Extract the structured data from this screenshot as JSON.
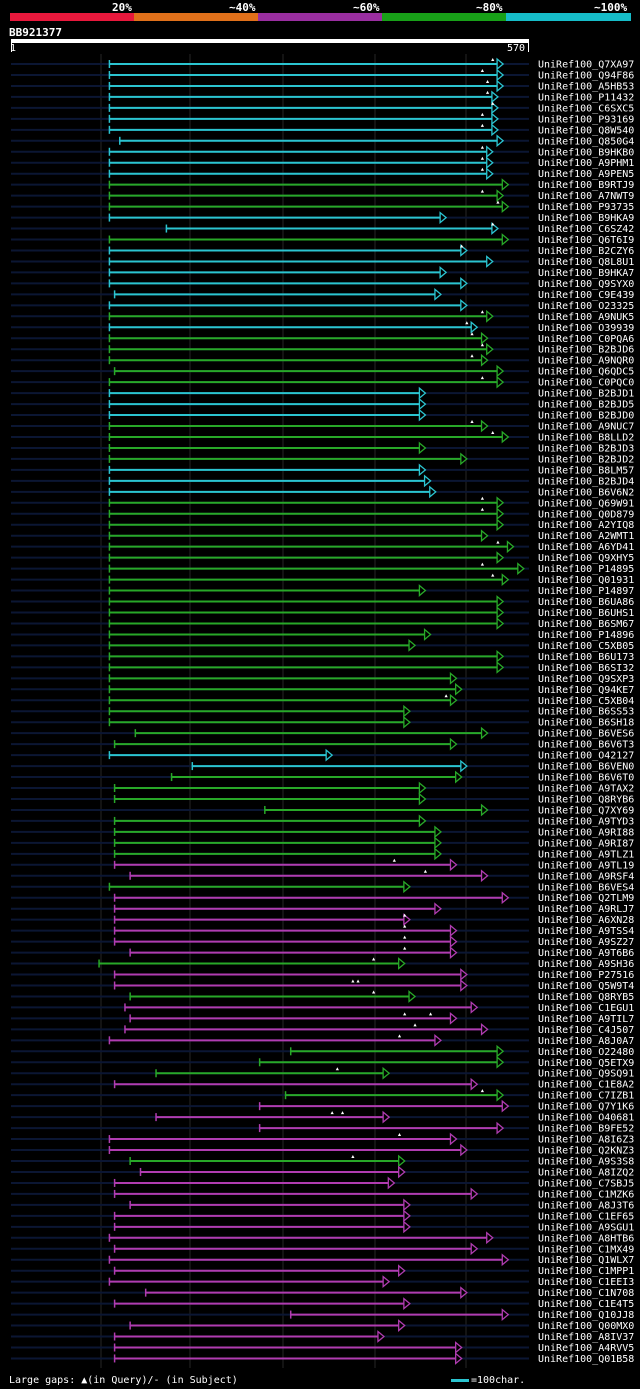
{
  "identity_scale": {
    "labels": [
      "20%",
      "~40%",
      "~60%",
      "~80%",
      "~100%"
    ],
    "colors": [
      "#e8183c",
      "#e0701a",
      "#9a2ea0",
      "#18a018",
      "#16bcc8"
    ]
  },
  "query": {
    "id": "BB921377",
    "start": "1",
    "end": "570"
  },
  "palette": {
    "cyan": "#2bc4d0",
    "green": "#28a828",
    "magenta": "#b03cb0",
    "track": "#0b1633",
    "grid": "#262626"
  },
  "hits": [
    {
      "name": "UniRef100_Q7XA97",
      "c": "c",
      "s": 19,
      "e": 95,
      "m": [
        93
      ]
    },
    {
      "name": "UniRef100_Q94F86",
      "c": "c",
      "s": 19,
      "e": 95,
      "m": [
        91
      ]
    },
    {
      "name": "UniRef100_A5HB53",
      "c": "c",
      "s": 19,
      "e": 95,
      "m": [
        92
      ]
    },
    {
      "name": "UniRef100_P11432",
      "c": "c",
      "s": 19,
      "e": 94,
      "m": [
        92
      ]
    },
    {
      "name": "UniRef100_C6SXC5",
      "c": "c",
      "s": 19,
      "e": 94,
      "m": [
        93
      ]
    },
    {
      "name": "UniRef100_P93169",
      "c": "c",
      "s": 19,
      "e": 94,
      "m": [
        91
      ]
    },
    {
      "name": "UniRef100_Q8W540",
      "c": "c",
      "s": 19,
      "e": 94,
      "m": [
        91
      ]
    },
    {
      "name": "UniRef100_Q850G4",
      "c": "c",
      "s": 21,
      "e": 95,
      "m": []
    },
    {
      "name": "UniRef100_B9HKB0",
      "c": "c",
      "s": 19,
      "e": 93,
      "m": [
        91
      ]
    },
    {
      "name": "UniRef100_A9PHM1",
      "c": "c",
      "s": 19,
      "e": 93,
      "m": [
        91
      ]
    },
    {
      "name": "UniRef100_A9PEN5",
      "c": "c",
      "s": 19,
      "e": 93,
      "m": [
        91
      ]
    },
    {
      "name": "UniRef100_B9RTJ9",
      "c": "g",
      "s": 19,
      "e": 96,
      "m": []
    },
    {
      "name": "UniRef100_A7NWT9",
      "c": "g",
      "s": 19,
      "e": 95,
      "m": [
        91
      ]
    },
    {
      "name": "UniRef100_P93735",
      "c": "g",
      "s": 19,
      "e": 96,
      "m": [
        94
      ]
    },
    {
      "name": "UniRef100_B9HKA9",
      "c": "c",
      "s": 19,
      "e": 84,
      "m": []
    },
    {
      "name": "UniRef100_C6SZ42",
      "c": "c",
      "s": 30,
      "e": 94,
      "m": [
        93
      ]
    },
    {
      "name": "UniRef100_Q6T6I9",
      "c": "g",
      "s": 19,
      "e": 96,
      "m": []
    },
    {
      "name": "UniRef100_B2CZY6",
      "c": "c",
      "s": 19,
      "e": 88,
      "m": [
        87
      ]
    },
    {
      "name": "UniRef100_Q8L8U1",
      "c": "c",
      "s": 19,
      "e": 93,
      "m": []
    },
    {
      "name": "UniRef100_B9HKA7",
      "c": "c",
      "s": 19,
      "e": 84,
      "m": []
    },
    {
      "name": "UniRef100_Q9SYX0",
      "c": "c",
      "s": 19,
      "e": 88,
      "m": []
    },
    {
      "name": "UniRef100_C9E439",
      "c": "c",
      "s": 20,
      "e": 83,
      "m": []
    },
    {
      "name": "UniRef100_O23325",
      "c": "c",
      "s": 19,
      "e": 88,
      "m": []
    },
    {
      "name": "UniRef100_A9NUK5",
      "c": "g",
      "s": 19,
      "e": 93,
      "m": [
        91
      ]
    },
    {
      "name": "UniRef100_O39939",
      "c": "c",
      "s": 19,
      "e": 90,
      "m": [
        88
      ]
    },
    {
      "name": "UniRef100_C0PQA6",
      "c": "g",
      "s": 19,
      "e": 92,
      "m": [
        89
      ]
    },
    {
      "name": "UniRef100_B2BJD6",
      "c": "g",
      "s": 19,
      "e": 93,
      "m": [
        91
      ]
    },
    {
      "name": "UniRef100_A9NQR0",
      "c": "g",
      "s": 19,
      "e": 92,
      "m": [
        89
      ]
    },
    {
      "name": "UniRef100_Q6QDC5",
      "c": "g",
      "s": 20,
      "e": 95,
      "m": []
    },
    {
      "name": "UniRef100_C0PQC0",
      "c": "g",
      "s": 19,
      "e": 95,
      "m": [
        91
      ]
    },
    {
      "name": "UniRef100_B2BJD1",
      "c": "c",
      "s": 19,
      "e": 80,
      "m": []
    },
    {
      "name": "UniRef100_B2BJD5",
      "c": "c",
      "s": 19,
      "e": 80,
      "m": []
    },
    {
      "name": "UniRef100_B2BJD0",
      "c": "c",
      "s": 19,
      "e": 80,
      "m": []
    },
    {
      "name": "UniRef100_A9NUC7",
      "c": "g",
      "s": 19,
      "e": 92,
      "m": [
        89
      ]
    },
    {
      "name": "UniRef100_B8LLD2",
      "c": "g",
      "s": 19,
      "e": 96,
      "m": [
        93
      ]
    },
    {
      "name": "UniRef100_B2BJD3",
      "c": "g",
      "s": 19,
      "e": 80,
      "m": []
    },
    {
      "name": "UniRef100_B2BJD2",
      "c": "g",
      "s": 19,
      "e": 88,
      "m": []
    },
    {
      "name": "UniRef100_B8LM57",
      "c": "c",
      "s": 19,
      "e": 80,
      "m": []
    },
    {
      "name": "UniRef100_B2BJD4",
      "c": "c",
      "s": 19,
      "e": 81,
      "m": []
    },
    {
      "name": "UniRef100_B6V6N2",
      "c": "c",
      "s": 19,
      "e": 82,
      "m": []
    },
    {
      "name": "UniRef100_Q69W91",
      "c": "g",
      "s": 19,
      "e": 95,
      "m": [
        91
      ]
    },
    {
      "name": "UniRef100_Q0D879",
      "c": "g",
      "s": 19,
      "e": 95,
      "m": [
        91
      ]
    },
    {
      "name": "UniRef100_A2YIQ8",
      "c": "g",
      "s": 19,
      "e": 95,
      "m": []
    },
    {
      "name": "UniRef100_A2WMT1",
      "c": "g",
      "s": 19,
      "e": 92,
      "m": []
    },
    {
      "name": "UniRef100_A6YD41",
      "c": "g",
      "s": 19,
      "e": 97,
      "m": [
        94
      ]
    },
    {
      "name": "UniRef100_Q9XHY5",
      "c": "g",
      "s": 19,
      "e": 95,
      "m": []
    },
    {
      "name": "UniRef100_P14895",
      "c": "g",
      "s": 19,
      "e": 99,
      "m": [
        91
      ]
    },
    {
      "name": "UniRef100_Q01931",
      "c": "g",
      "s": 19,
      "e": 96,
      "m": [
        93
      ]
    },
    {
      "name": "UniRef100_P14897",
      "c": "g",
      "s": 19,
      "e": 80,
      "m": []
    },
    {
      "name": "UniRef100_B6UA86",
      "c": "g",
      "s": 19,
      "e": 95,
      "m": []
    },
    {
      "name": "UniRef100_B6UHS1",
      "c": "g",
      "s": 19,
      "e": 95,
      "m": []
    },
    {
      "name": "UniRef100_B6SM67",
      "c": "g",
      "s": 19,
      "e": 95,
      "m": []
    },
    {
      "name": "UniRef100_P14896",
      "c": "g",
      "s": 19,
      "e": 81,
      "m": []
    },
    {
      "name": "UniRef100_C5XB05",
      "c": "g",
      "s": 19,
      "e": 78,
      "m": []
    },
    {
      "name": "UniRef100_B6U173",
      "c": "g",
      "s": 19,
      "e": 95,
      "m": []
    },
    {
      "name": "UniRef100_B6SI32",
      "c": "g",
      "s": 19,
      "e": 95,
      "m": []
    },
    {
      "name": "UniRef100_Q9SXP3",
      "c": "g",
      "s": 19,
      "e": 86,
      "m": []
    },
    {
      "name": "UniRef100_Q94KE7",
      "c": "g",
      "s": 19,
      "e": 87,
      "m": []
    },
    {
      "name": "UniRef100_C5XB04",
      "c": "g",
      "s": 19,
      "e": 86,
      "m": [
        84
      ]
    },
    {
      "name": "UniRef100_B6SS53",
      "c": "g",
      "s": 19,
      "e": 77,
      "m": []
    },
    {
      "name": "UniRef100_B6SH18",
      "c": "g",
      "s": 19,
      "e": 77,
      "m": []
    },
    {
      "name": "UniRef100_B6VES6",
      "c": "g",
      "s": 24,
      "e": 92,
      "m": []
    },
    {
      "name": "UniRef100_B6V6T3",
      "c": "g",
      "s": 20,
      "e": 86,
      "m": []
    },
    {
      "name": "UniRef100_O42127",
      "c": "c",
      "s": 19,
      "e": 62,
      "m": []
    },
    {
      "name": "UniRef100_B6VEN0",
      "c": "c",
      "s": 35,
      "e": 88,
      "m": []
    },
    {
      "name": "UniRef100_B6V6T0",
      "c": "g",
      "s": 31,
      "e": 87,
      "m": []
    },
    {
      "name": "UniRef100_A9TAX2",
      "c": "g",
      "s": 20,
      "e": 80,
      "m": []
    },
    {
      "name": "UniRef100_Q8RYB6",
      "c": "g",
      "s": 20,
      "e": 80,
      "m": []
    },
    {
      "name": "UniRef100_Q7XY69",
      "c": "g",
      "s": 49,
      "e": 92,
      "m": []
    },
    {
      "name": "UniRef100_A9TYD3",
      "c": "g",
      "s": 20,
      "e": 80,
      "m": []
    },
    {
      "name": "UniRef100_A9RI88",
      "c": "g",
      "s": 20,
      "e": 83,
      "m": []
    },
    {
      "name": "UniRef100_A9RI87",
      "c": "g",
      "s": 20,
      "e": 83,
      "m": []
    },
    {
      "name": "UniRef100_A9TLZ1",
      "c": "g",
      "s": 20,
      "e": 83,
      "m": []
    },
    {
      "name": "UniRef100_A9TL19",
      "c": "m",
      "s": 20,
      "e": 86,
      "m": [
        74
      ]
    },
    {
      "name": "UniRef100_A9RSF4",
      "c": "m",
      "s": 23,
      "e": 92,
      "m": [
        80
      ]
    },
    {
      "name": "UniRef100_B6VES4",
      "c": "g",
      "s": 19,
      "e": 77,
      "m": []
    },
    {
      "name": "UniRef100_Q2TLM9",
      "c": "m",
      "s": 20,
      "e": 96,
      "m": []
    },
    {
      "name": "UniRef100_A9RLJ7",
      "c": "m",
      "s": 20,
      "e": 83,
      "m": []
    },
    {
      "name": "UniRef100_A6XN28",
      "c": "m",
      "s": 20,
      "e": 77,
      "m": [
        76
      ]
    },
    {
      "name": "UniRef100_A9TSS4",
      "c": "m",
      "s": 20,
      "e": 86,
      "m": [
        76
      ]
    },
    {
      "name": "UniRef100_A9SZ27",
      "c": "m",
      "s": 20,
      "e": 86,
      "m": [
        76
      ]
    },
    {
      "name": "UniRef100_A9T6B6",
      "c": "m",
      "s": 23,
      "e": 86,
      "m": [
        76
      ]
    },
    {
      "name": "UniRef100_A9SH36",
      "c": "g",
      "s": 17,
      "e": 76,
      "m": [
        70
      ]
    },
    {
      "name": "UniRef100_P27516",
      "c": "m",
      "s": 20,
      "e": 88,
      "m": []
    },
    {
      "name": "UniRef100_Q5W9T4",
      "c": "m",
      "s": 20,
      "e": 88,
      "m": [
        66,
        67
      ]
    },
    {
      "name": "UniRef100_Q8RYB5",
      "c": "g",
      "s": 23,
      "e": 78,
      "m": [
        70
      ]
    },
    {
      "name": "UniRef100_C1EGU1",
      "c": "m",
      "s": 22,
      "e": 90,
      "m": []
    },
    {
      "name": "UniRef100_A9TIL7",
      "c": "m",
      "s": 23,
      "e": 86,
      "m": [
        76,
        81
      ]
    },
    {
      "name": "UniRef100_C4J507",
      "c": "m",
      "s": 22,
      "e": 92,
      "m": [
        78
      ]
    },
    {
      "name": "UniRef100_A8J0A7",
      "c": "m",
      "s": 19,
      "e": 83,
      "m": [
        75
      ]
    },
    {
      "name": "UniRef100_O22480",
      "c": "g",
      "s": 54,
      "e": 95,
      "m": []
    },
    {
      "name": "UniRef100_Q5ETX9",
      "c": "g",
      "s": 48,
      "e": 95,
      "m": []
    },
    {
      "name": "UniRef100_Q9SQ91",
      "c": "g",
      "s": 28,
      "e": 73,
      "m": [
        63
      ]
    },
    {
      "name": "UniRef100_C1E8A2",
      "c": "m",
      "s": 20,
      "e": 90,
      "m": []
    },
    {
      "name": "UniRef100_C7IZB1",
      "c": "g",
      "s": 53,
      "e": 95,
      "m": [
        91
      ]
    },
    {
      "name": "UniRef100_Q7Y1K6",
      "c": "m",
      "s": 48,
      "e": 96,
      "m": []
    },
    {
      "name": "UniRef100_O40681",
      "c": "m",
      "s": 28,
      "e": 73,
      "m": [
        62,
        64
      ]
    },
    {
      "name": "UniRef100_B9FE52",
      "c": "m",
      "s": 48,
      "e": 95,
      "m": []
    },
    {
      "name": "UniRef100_A8I6Z3",
      "c": "m",
      "s": 19,
      "e": 86,
      "m": [
        75
      ]
    },
    {
      "name": "UniRef100_Q2KNZ3",
      "c": "m",
      "s": 19,
      "e": 88,
      "m": []
    },
    {
      "name": "UniRef100_A9S3S8",
      "c": "g",
      "s": 23,
      "e": 76,
      "m": [
        66
      ]
    },
    {
      "name": "UniRef100_A8IZQ2",
      "c": "m",
      "s": 25,
      "e": 76,
      "m": []
    },
    {
      "name": "UniRef100_C7SBJ5",
      "c": "m",
      "s": 20,
      "e": 74,
      "m": []
    },
    {
      "name": "UniRef100_C1MZK6",
      "c": "m",
      "s": 20,
      "e": 90,
      "m": []
    },
    {
      "name": "UniRef100_A8J3T6",
      "c": "m",
      "s": 23,
      "e": 77,
      "m": []
    },
    {
      "name": "UniRef100_C1EF65",
      "c": "m",
      "s": 20,
      "e": 77,
      "m": []
    },
    {
      "name": "UniRef100_A9SGU1",
      "c": "m",
      "s": 20,
      "e": 77,
      "m": []
    },
    {
      "name": "UniRef100_A8HTB6",
      "c": "m",
      "s": 19,
      "e": 93,
      "m": []
    },
    {
      "name": "UniRef100_C1MX49",
      "c": "m",
      "s": 20,
      "e": 90,
      "m": []
    },
    {
      "name": "UniRef100_Q1WLX7",
      "c": "m",
      "s": 19,
      "e": 96,
      "m": []
    },
    {
      "name": "UniRef100_C1MPP1",
      "c": "m",
      "s": 20,
      "e": 76,
      "m": []
    },
    {
      "name": "UniRef100_C1EEI3",
      "c": "m",
      "s": 19,
      "e": 73,
      "m": []
    },
    {
      "name": "UniRef100_C1N708",
      "c": "m",
      "s": 26,
      "e": 88,
      "m": []
    },
    {
      "name": "UniRef100_C1E4T5",
      "c": "m",
      "s": 20,
      "e": 77,
      "m": []
    },
    {
      "name": "UniRef100_Q10JJ8",
      "c": "m",
      "s": 54,
      "e": 96,
      "m": []
    },
    {
      "name": "UniRef100_Q00MX0",
      "c": "m",
      "s": 23,
      "e": 76,
      "m": []
    },
    {
      "name": "UniRef100_A8IV37",
      "c": "m",
      "s": 20,
      "e": 72,
      "m": []
    },
    {
      "name": "UniRef100_A4RVV5",
      "c": "m",
      "s": 20,
      "e": 87,
      "m": []
    },
    {
      "name": "UniRef100_Q01B58",
      "c": "m",
      "s": 20,
      "e": 87,
      "m": []
    }
  ],
  "legend": {
    "large_gaps": "Large gaps: ▲(in Query)/- (in Subject)",
    "key": "=100char."
  }
}
